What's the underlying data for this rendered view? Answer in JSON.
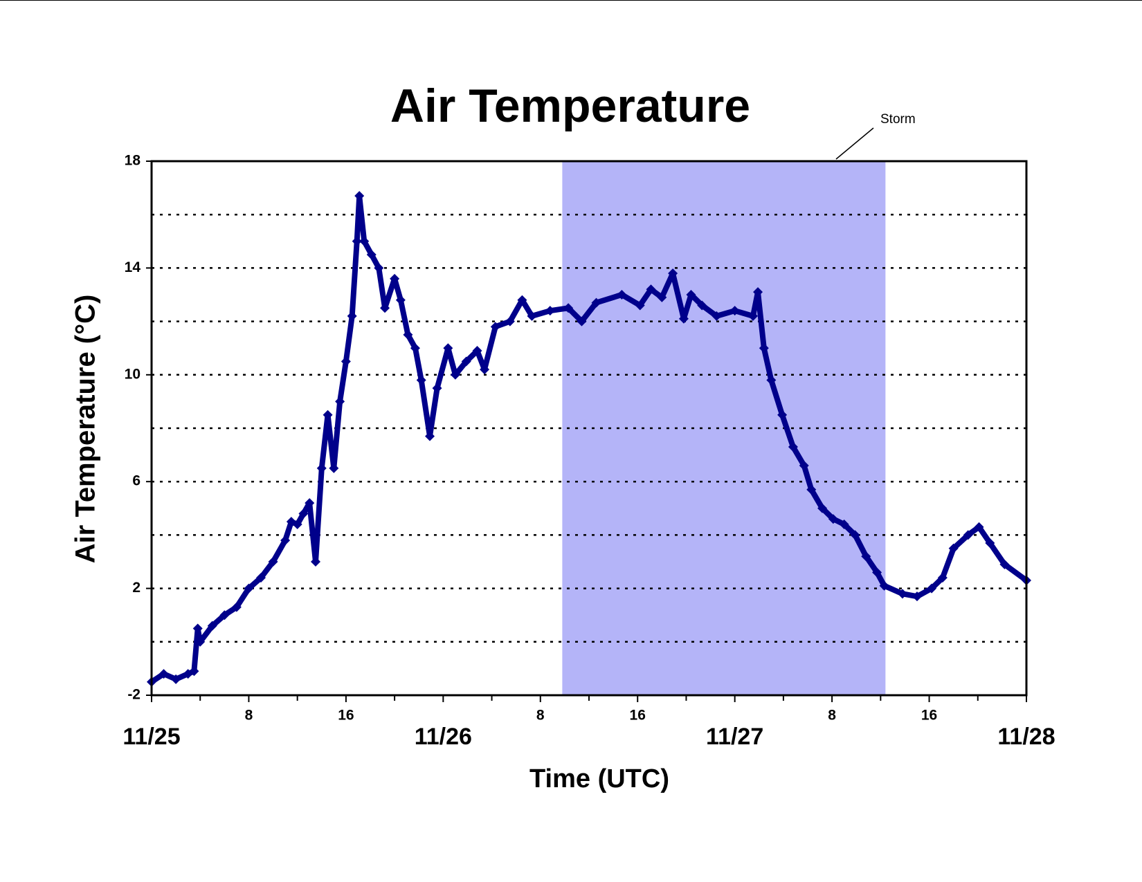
{
  "chart_data": {
    "type": "line",
    "title": "Air Temperature",
    "x_label": "Time (UTC)",
    "y_label": "Air Temperature (°C)",
    "storm": {
      "label": "Storm",
      "start": 33.8,
      "end": 60.4,
      "color": "#b4b4f8"
    },
    "color": "#00008b",
    "xlim": [
      0,
      72
    ],
    "xticks": [
      {
        "value": 0,
        "label": "11/25"
      },
      8,
      16,
      {
        "value": 24,
        "label": "11/26"
      },
      {
        "value": 32,
        "label": "8"
      },
      {
        "value": 40,
        "label": "16"
      },
      {
        "value": 48,
        "label": "11/27"
      },
      {
        "value": 56,
        "label": "8"
      },
      {
        "value": 64,
        "label": "16"
      },
      {
        "value": 72,
        "label": "11/28"
      }
    ],
    "xminorticks": [
      4,
      12,
      20,
      28,
      36,
      44,
      52,
      60,
      68
    ],
    "ylim": [
      -2,
      18
    ],
    "yticks": [
      -2,
      2,
      6,
      10,
      14,
      18
    ],
    "ygrid": [
      0,
      2,
      4,
      6,
      8,
      10,
      12,
      14,
      16
    ],
    "x": [
      0,
      1,
      2,
      3,
      3.5,
      3.8,
      4,
      5,
      6,
      7,
      8,
      9,
      10,
      11,
      11.5,
      12,
      12.5,
      13,
      13.5,
      14,
      14.5,
      15,
      15.5,
      16,
      16.5,
      16.9,
      17.1,
      17.5,
      18.1,
      18.7,
      19.2,
      20.0,
      20.5,
      21.1,
      21.7,
      22.2,
      22.9,
      23.5,
      24.4,
      25.0,
      25.9,
      26.8,
      27.4,
      28.3,
      29.5,
      30.5,
      31.3,
      32.8,
      34.3,
      35.4,
      36.6,
      38.7,
      40.2,
      41.1,
      42.0,
      42.9,
      43.8,
      44.4,
      45.3,
      46.5,
      48.0,
      49.5,
      49.9,
      50.4,
      51.0,
      51.9,
      52.8,
      53.7,
      54.3,
      55.2,
      56.1,
      57.0,
      57.9,
      58.8,
      59.7,
      60.3,
      61.8,
      63.0,
      64.2,
      65.1,
      66.0,
      67.2,
      68.1,
      69.0,
      70.2,
      72.0
    ],
    "values": [
      -1.5,
      -1.2,
      -1.4,
      -1.2,
      -1.1,
      0.5,
      0.0,
      0.6,
      1.0,
      1.3,
      2.0,
      2.4,
      3.0,
      3.8,
      4.5,
      4.4,
      4.8,
      5.2,
      3.0,
      6.5,
      8.5,
      6.5,
      9.0,
      10.5,
      12.2,
      15.0,
      16.7,
      15.0,
      14.5,
      14.0,
      12.5,
      13.6,
      12.8,
      11.5,
      11.0,
      9.8,
      7.7,
      9.5,
      11.0,
      10.0,
      10.5,
      10.9,
      10.2,
      11.8,
      12.0,
      12.8,
      12.2,
      12.4,
      12.5,
      12.0,
      12.7,
      13.0,
      12.6,
      13.2,
      12.9,
      13.8,
      12.1,
      13.0,
      12.6,
      12.2,
      12.4,
      12.2,
      13.1,
      11.0,
      9.8,
      8.5,
      7.3,
      6.6,
      5.7,
      5.0,
      4.6,
      4.4,
      4.0,
      3.2,
      2.6,
      2.1,
      1.8,
      1.7,
      2.0,
      2.4,
      3.5,
      4.0,
      4.3,
      3.7,
      2.9,
      2.3
    ]
  }
}
